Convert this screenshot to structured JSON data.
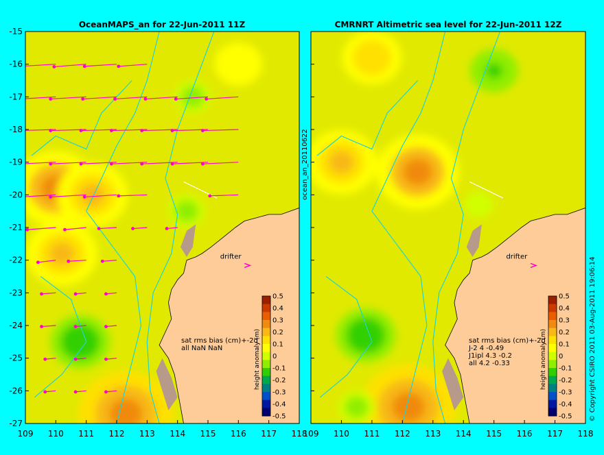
{
  "colors": {
    "background": "#00ffff",
    "land": "#fdcc99",
    "coast_shelf": "#b89a8a",
    "contour": "#22d3d3",
    "arrow": "#ff00cc",
    "track": "#ffffff"
  },
  "side_text": {
    "left": "ocean_an_20110622",
    "right": "© Copyright CSIRO 2011   03-Aug-2011 19:06:14"
  },
  "drifter_label": "drifter",
  "chart_data": [
    {
      "type": "heatmap",
      "title": "OceanMAPS_an for 22-Jun-2011 11Z",
      "xlim": [
        109,
        118
      ],
      "ylim": [
        -27,
        -15
      ],
      "x_ticks": [
        109,
        110,
        111,
        112,
        113,
        114,
        115,
        116,
        117,
        118
      ],
      "y_ticks": [
        -15,
        -16,
        -17,
        -18,
        -19,
        -20,
        -21,
        -22,
        -23,
        -24,
        -25,
        -26,
        -27
      ],
      "grid": false,
      "bias_text": [
        "sat rms bias (cm)+-2d",
        "all NaN NaN"
      ],
      "anomalies": [
        {
          "lon": 110.0,
          "lat": -19.8,
          "value": 0.25
        },
        {
          "lon": 111.2,
          "lat": -20.0,
          "value": 0.2
        },
        {
          "lon": 112.3,
          "lat": -26.7,
          "value": 0.3
        },
        {
          "lon": 110.2,
          "lat": -21.8,
          "value": 0.2
        },
        {
          "lon": 110.8,
          "lat": -24.5,
          "value": -0.15
        },
        {
          "lon": 114.5,
          "lat": -17.0,
          "value": -0.05
        },
        {
          "lon": 114.3,
          "lat": -20.5,
          "value": -0.05
        },
        {
          "lon": 116.0,
          "lat": -16.0,
          "value": 0.1
        }
      ],
      "vectors": [
        {
          "lon": 110,
          "lat": -16,
          "u": -1,
          "v": 0.1
        },
        {
          "lon": 111,
          "lat": -16,
          "u": -0.9,
          "v": 0.12
        },
        {
          "lon": 112,
          "lat": -16,
          "u": -0.9,
          "v": 0.1
        },
        {
          "lon": 113,
          "lat": -16,
          "u": -0.8,
          "v": 0.1
        },
        {
          "lon": 110,
          "lat": -17,
          "u": -1,
          "v": 0.1
        },
        {
          "lon": 111,
          "lat": -17,
          "u": -1,
          "v": 0.1
        },
        {
          "lon": 112,
          "lat": -17,
          "u": -0.95,
          "v": 0.1
        },
        {
          "lon": 113,
          "lat": -17,
          "u": -0.9,
          "v": 0.1
        },
        {
          "lon": 114,
          "lat": -17,
          "u": -0.9,
          "v": 0.1
        },
        {
          "lon": 115,
          "lat": -17,
          "u": -0.9,
          "v": 0.1
        },
        {
          "lon": 116,
          "lat": -17,
          "u": -0.9,
          "v": 0.1
        },
        {
          "lon": 110,
          "lat": -18,
          "u": -1,
          "v": 0.05
        },
        {
          "lon": 111,
          "lat": -18,
          "u": -1,
          "v": 0.05
        },
        {
          "lon": 112,
          "lat": -18,
          "u": -1,
          "v": 0.05
        },
        {
          "lon": 113,
          "lat": -18,
          "u": -1,
          "v": 0.05
        },
        {
          "lon": 114,
          "lat": -18,
          "u": -1,
          "v": 0.05
        },
        {
          "lon": 115,
          "lat": -18,
          "u": -1,
          "v": 0.05
        },
        {
          "lon": 116,
          "lat": -18,
          "u": -1,
          "v": 0.05
        },
        {
          "lon": 110,
          "lat": -19,
          "u": -1,
          "v": 0.08
        },
        {
          "lon": 111,
          "lat": -19,
          "u": -1,
          "v": 0.08
        },
        {
          "lon": 112,
          "lat": -19,
          "u": -1,
          "v": 0.08
        },
        {
          "lon": 113,
          "lat": -19,
          "u": -1,
          "v": 0.08
        },
        {
          "lon": 114,
          "lat": -19,
          "u": -1,
          "v": 0.08
        },
        {
          "lon": 115,
          "lat": -19,
          "u": -1,
          "v": 0.08
        },
        {
          "lon": 116,
          "lat": -19,
          "u": -1,
          "v": 0.08
        },
        {
          "lon": 110,
          "lat": -20,
          "u": -1,
          "v": 0.1
        },
        {
          "lon": 111,
          "lat": -20,
          "u": -1,
          "v": 0.1
        },
        {
          "lon": 112,
          "lat": -20,
          "u": -0.9,
          "v": 0.1
        },
        {
          "lon": 113,
          "lat": -20,
          "u": -0.8,
          "v": 0.05
        },
        {
          "lon": 116,
          "lat": -20,
          "u": -0.8,
          "v": 0.05
        },
        {
          "lon": 110,
          "lat": -21,
          "u": -0.8,
          "v": 0.1
        },
        {
          "lon": 111,
          "lat": -21,
          "u": -0.6,
          "v": 0.1
        },
        {
          "lon": 112,
          "lat": -21,
          "u": -0.5,
          "v": 0.05
        },
        {
          "lon": 113,
          "lat": -21,
          "u": -0.4,
          "v": 0.05
        },
        {
          "lon": 114,
          "lat": -21,
          "u": -0.3,
          "v": 0.05
        },
        {
          "lon": 110,
          "lat": -22,
          "u": -0.5,
          "v": 0.1
        },
        {
          "lon": 111,
          "lat": -22,
          "u": -0.5,
          "v": 0.05
        },
        {
          "lon": 112,
          "lat": -22,
          "u": -0.4,
          "v": 0.05
        },
        {
          "lon": 110,
          "lat": -23,
          "u": -0.4,
          "v": 0.05
        },
        {
          "lon": 111,
          "lat": -23,
          "u": -0.3,
          "v": 0.05
        },
        {
          "lon": 112,
          "lat": -23,
          "u": -0.3,
          "v": 0.05
        },
        {
          "lon": 110,
          "lat": -24,
          "u": -0.4,
          "v": 0.05
        },
        {
          "lon": 111,
          "lat": -24,
          "u": -0.3,
          "v": 0.05
        },
        {
          "lon": 112,
          "lat": -24,
          "u": -0.3,
          "v": 0.05
        },
        {
          "lon": 110,
          "lat": -25,
          "u": -0.3,
          "v": 0.05
        },
        {
          "lon": 111,
          "lat": -25,
          "u": -0.3,
          "v": 0.05
        },
        {
          "lon": 112,
          "lat": -25,
          "u": -0.3,
          "v": 0.05
        },
        {
          "lon": 110,
          "lat": -26,
          "u": -0.3,
          "v": 0.05
        },
        {
          "lon": 111,
          "lat": -26,
          "u": -0.3,
          "v": 0.05
        },
        {
          "lon": 112,
          "lat": -26,
          "u": -0.3,
          "v": 0.05
        }
      ]
    },
    {
      "type": "heatmap",
      "title": "CMRNRT Altimetric sea level  for 22-Jun-2011 12Z",
      "xlim": [
        109,
        118
      ],
      "ylim": [
        -27,
        -15
      ],
      "x_ticks": [
        109,
        110,
        111,
        112,
        113,
        114,
        115,
        116,
        117,
        118
      ],
      "y_ticks": [
        -15,
        -16,
        -17,
        -18,
        -19,
        -20,
        -21,
        -22,
        -23,
        -24,
        -25,
        -26,
        -27
      ],
      "grid": false,
      "bias_text": [
        "sat rms bias (cm)+-2d",
        "J-2   4 -0.49",
        "J1ipl 4.3 -0.2",
        "all 4.2 -0.33"
      ],
      "anomalies": [
        {
          "lon": 110.0,
          "lat": -19.0,
          "value": 0.2
        },
        {
          "lon": 112.5,
          "lat": -19.3,
          "value": 0.25
        },
        {
          "lon": 111.0,
          "lat": -15.8,
          "value": 0.15
        },
        {
          "lon": 112.2,
          "lat": -26.5,
          "value": 0.3
        },
        {
          "lon": 115.0,
          "lat": -16.2,
          "value": -0.1
        },
        {
          "lon": 110.8,
          "lat": -24.3,
          "value": -0.15
        },
        {
          "lon": 110.5,
          "lat": -26.5,
          "value": -0.05
        },
        {
          "lon": 114.5,
          "lat": -20.3,
          "value": -0.02
        }
      ],
      "vectors": []
    }
  ],
  "colorbar": {
    "label": "height anomaly (m)",
    "ticks": [
      "0.5",
      "0.4",
      "0.3",
      "0.2",
      "0.1",
      "0",
      "-0.1",
      "-0.2",
      "-0.3",
      "-0.4",
      "-0.5"
    ],
    "colors": [
      "#9c1f00",
      "#cc3a00",
      "#e85e00",
      "#f08a10",
      "#f8b818",
      "#ffe000",
      "#ffff00",
      "#d0ff00",
      "#90ee00",
      "#30d000",
      "#00a850",
      "#008080",
      "#0050c8",
      "#0018a0",
      "#000070"
    ]
  }
}
